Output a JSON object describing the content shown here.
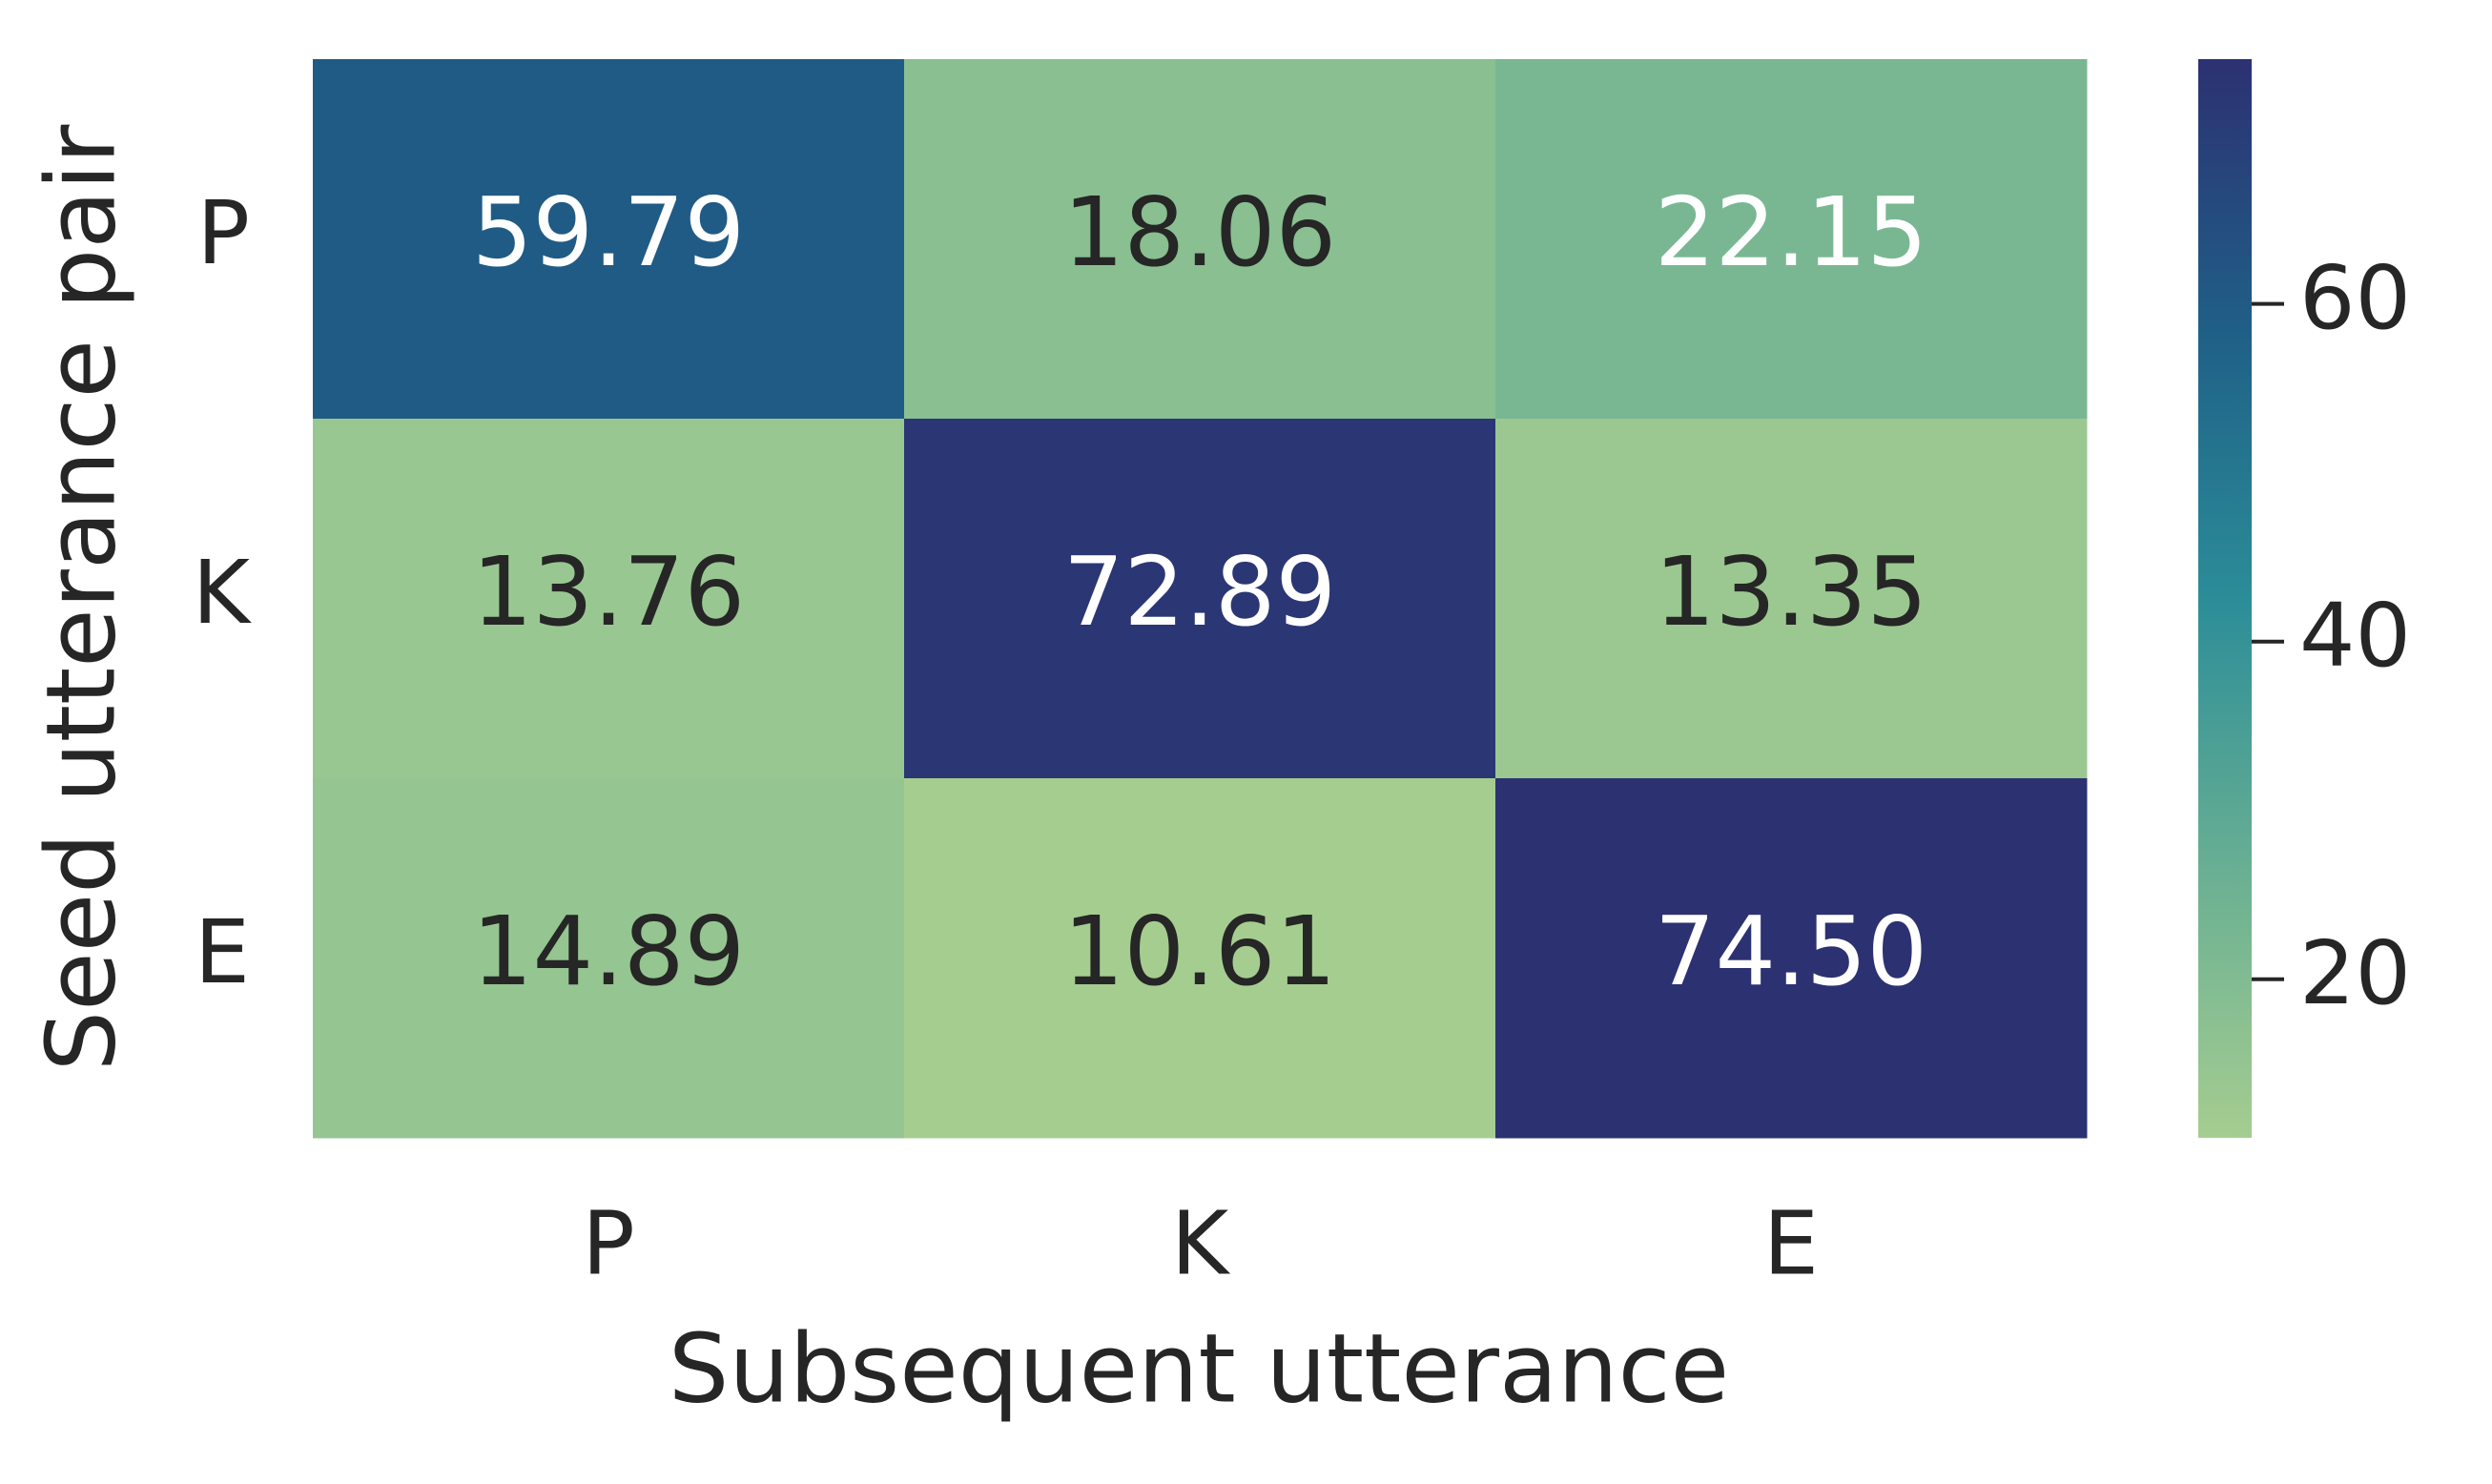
{
  "chart_data": {
    "type": "heatmap",
    "xlabel": "Subsequent utterance",
    "ylabel": "Seed utterance pair",
    "x_categories": [
      "P",
      "K",
      "E"
    ],
    "y_categories": [
      "P",
      "K",
      "E"
    ],
    "values": [
      [
        59.79,
        18.06,
        22.15
      ],
      [
        13.76,
        72.89,
        13.35
      ],
      [
        14.89,
        10.61,
        74.5
      ]
    ],
    "value_labels": [
      [
        "59.79",
        "18.06",
        "22.15"
      ],
      [
        "13.76",
        "72.89",
        "13.35"
      ],
      [
        "14.89",
        "10.61",
        "74.50"
      ]
    ],
    "colormap": [
      "#a5cd90",
      "#68af93",
      "#2b8d98",
      "#1f5f87",
      "#2c3172"
    ],
    "clim": [
      10.61,
      74.5
    ],
    "cticks": [
      20,
      40,
      60
    ]
  }
}
